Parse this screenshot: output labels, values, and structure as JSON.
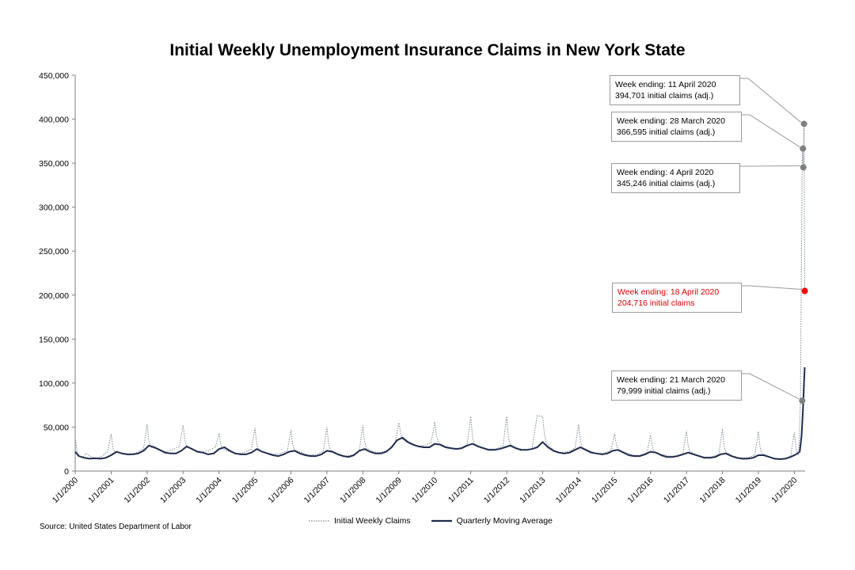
{
  "chart_data": {
    "type": "line",
    "title": "Initial Weekly Unemployment Insurance Claims in New York State",
    "xlabel": "",
    "ylabel": "",
    "ylim": [
      0,
      450000
    ],
    "xlim": [
      2000.0,
      2020.3
    ],
    "y_ticks": [
      "0",
      "50,000",
      "100,000",
      "150,000",
      "200,000",
      "250,000",
      "300,000",
      "350,000",
      "400,000",
      "450,000"
    ],
    "x_ticks": [
      "1/1/2000",
      "1/1/2001",
      "1/1/2002",
      "1/1/2003",
      "1/1/2004",
      "1/1/2005",
      "1/1/2006",
      "1/1/2007",
      "1/1/2008",
      "1/1/2009",
      "1/1/2010",
      "1/1/2011",
      "1/1/2012",
      "1/1/2013",
      "1/1/2014",
      "1/1/2015",
      "1/1/2016",
      "1/1/2017",
      "1/1/2018",
      "1/1/2019",
      "1/1/2020"
    ],
    "grid": false,
    "legend": "bottom",
    "series": [
      {
        "name": "Initial Weekly Claims",
        "style": "dotted",
        "color": "#7f8896",
        "x": [
          2000.0,
          2000.05,
          2000.1,
          2000.2,
          2000.3,
          2000.45,
          2000.6,
          2000.75,
          2000.9,
          2001.0,
          2001.05,
          2001.1,
          2001.3,
          2001.5,
          2001.7,
          2001.9,
          2002.0,
          2002.05,
          2002.1,
          2002.3,
          2002.5,
          2002.7,
          2002.9,
          2003.0,
          2003.05,
          2003.1,
          2003.3,
          2003.5,
          2003.7,
          2003.9,
          2004.0,
          2004.05,
          2004.1,
          2004.3,
          2004.5,
          2004.7,
          2004.9,
          2005.0,
          2005.05,
          2005.1,
          2005.3,
          2005.5,
          2005.7,
          2005.9,
          2006.0,
          2006.05,
          2006.1,
          2006.3,
          2006.5,
          2006.7,
          2006.9,
          2007.0,
          2007.05,
          2007.1,
          2007.3,
          2007.5,
          2007.7,
          2007.9,
          2008.0,
          2008.05,
          2008.1,
          2008.3,
          2008.5,
          2008.7,
          2008.9,
          2009.0,
          2009.05,
          2009.1,
          2009.3,
          2009.5,
          2009.7,
          2009.9,
          2010.0,
          2010.05,
          2010.1,
          2010.3,
          2010.5,
          2010.7,
          2010.9,
          2011.0,
          2011.05,
          2011.1,
          2011.3,
          2011.5,
          2011.7,
          2011.9,
          2012.0,
          2012.05,
          2012.1,
          2012.3,
          2012.5,
          2012.7,
          2012.85,
          2013.0,
          2013.05,
          2013.1,
          2013.3,
          2013.5,
          2013.7,
          2013.9,
          2014.0,
          2014.05,
          2014.1,
          2014.3,
          2014.5,
          2014.7,
          2014.9,
          2015.0,
          2015.05,
          2015.1,
          2015.3,
          2015.5,
          2015.7,
          2015.9,
          2016.0,
          2016.05,
          2016.1,
          2016.3,
          2016.5,
          2016.7,
          2016.9,
          2017.0,
          2017.05,
          2017.1,
          2017.3,
          2017.5,
          2017.7,
          2017.9,
          2018.0,
          2018.05,
          2018.1,
          2018.3,
          2018.5,
          2018.7,
          2018.9,
          2019.0,
          2019.05,
          2019.1,
          2019.3,
          2019.5,
          2019.7,
          2019.9,
          2020.0,
          2020.05,
          2020.12,
          2020.17,
          2020.22,
          2020.25,
          2020.27,
          2020.29
        ],
        "values": [
          38000,
          22000,
          18000,
          15000,
          20000,
          16000,
          14000,
          17000,
          22000,
          42000,
          26000,
          22000,
          20000,
          18000,
          21000,
          25000,
          53000,
          34000,
          27000,
          25000,
          22000,
          24000,
          28000,
          52000,
          35000,
          28000,
          24000,
          22000,
          23000,
          27000,
          43000,
          30000,
          25000,
          22000,
          20000,
          21000,
          25000,
          49000,
          30000,
          24000,
          21000,
          19000,
          20000,
          23000,
          47000,
          30000,
          24000,
          21000,
          18000,
          19000,
          22000,
          50000,
          30000,
          24000,
          20000,
          17000,
          18000,
          22000,
          52000,
          33000,
          26000,
          22000,
          21000,
          24000,
          32000,
          55000,
          44000,
          36000,
          31000,
          28000,
          29000,
          32000,
          56000,
          40000,
          32000,
          28000,
          26000,
          26000,
          30000,
          62000,
          38000,
          31000,
          27000,
          25000,
          25000,
          29000,
          62000,
          38000,
          30000,
          26000,
          24000,
          25000,
          63000,
          62000,
          42000,
          32000,
          24000,
          21000,
          22000,
          26000,
          53000,
          34000,
          27000,
          23000,
          20000,
          20000,
          24000,
          42000,
          30000,
          24000,
          21000,
          18000,
          18000,
          21000,
          41000,
          28000,
          22000,
          19000,
          17000,
          17000,
          20000,
          46000,
          28000,
          22000,
          18000,
          16000,
          16000,
          19000,
          48000,
          28000,
          21000,
          17000,
          15000,
          15000,
          18000,
          45000,
          26000,
          20000,
          16000,
          14000,
          14000,
          17000,
          44000,
          25000,
          18000,
          79999,
          366595,
          345246,
          394701,
          204716
        ]
      },
      {
        "name": "Quarterly Moving Average",
        "style": "solid",
        "color": "#1f2d4d",
        "x": [
          2000.0,
          2000.1,
          2000.25,
          2000.4,
          2000.55,
          2000.7,
          2000.85,
          2001.0,
          2001.15,
          2001.3,
          2001.45,
          2001.6,
          2001.75,
          2001.9,
          2002.05,
          2002.2,
          2002.35,
          2002.5,
          2002.65,
          2002.8,
          2002.95,
          2003.1,
          2003.25,
          2003.4,
          2003.55,
          2003.7,
          2003.85,
          2004.0,
          2004.15,
          2004.3,
          2004.45,
          2004.6,
          2004.75,
          2004.9,
          2005.05,
          2005.2,
          2005.35,
          2005.5,
          2005.65,
          2005.8,
          2005.95,
          2006.1,
          2006.25,
          2006.4,
          2006.55,
          2006.7,
          2006.85,
          2007.0,
          2007.15,
          2007.3,
          2007.45,
          2007.6,
          2007.75,
          2007.9,
          2008.05,
          2008.2,
          2008.35,
          2008.5,
          2008.65,
          2008.8,
          2008.95,
          2009.1,
          2009.25,
          2009.4,
          2009.55,
          2009.7,
          2009.85,
          2010.0,
          2010.15,
          2010.3,
          2010.45,
          2010.6,
          2010.75,
          2010.9,
          2011.05,
          2011.2,
          2011.35,
          2011.5,
          2011.65,
          2011.8,
          2011.95,
          2012.1,
          2012.25,
          2012.4,
          2012.55,
          2012.7,
          2012.85,
          2013.0,
          2013.15,
          2013.3,
          2013.45,
          2013.6,
          2013.75,
          2013.9,
          2014.05,
          2014.2,
          2014.35,
          2014.5,
          2014.65,
          2014.8,
          2014.95,
          2015.1,
          2015.25,
          2015.4,
          2015.55,
          2015.7,
          2015.85,
          2016.0,
          2016.15,
          2016.3,
          2016.45,
          2016.6,
          2016.75,
          2016.9,
          2017.05,
          2017.2,
          2017.35,
          2017.5,
          2017.65,
          2017.8,
          2017.95,
          2018.1,
          2018.25,
          2018.4,
          2018.55,
          2018.7,
          2018.85,
          2019.0,
          2019.15,
          2019.3,
          2019.45,
          2019.6,
          2019.75,
          2019.9,
          2020.05,
          2020.15,
          2020.2,
          2020.24,
          2020.27,
          2020.29
        ],
        "values": [
          22000,
          17000,
          15000,
          14000,
          14500,
          14000,
          15000,
          18000,
          22000,
          20000,
          19000,
          19000,
          20000,
          23000,
          29000,
          27000,
          24000,
          21000,
          20000,
          20000,
          23000,
          28000,
          25000,
          22000,
          21000,
          19000,
          20000,
          25000,
          27000,
          23000,
          20000,
          19000,
          19000,
          21000,
          25000,
          22000,
          20000,
          18000,
          17000,
          19000,
          22000,
          23000,
          20000,
          18000,
          17000,
          17000,
          19000,
          23000,
          22000,
          19000,
          17000,
          16000,
          18000,
          23000,
          25000,
          22000,
          20000,
          20000,
          22000,
          27000,
          35000,
          38000,
          33000,
          30000,
          28000,
          27000,
          27000,
          31000,
          30000,
          27000,
          26000,
          25000,
          26000,
          29000,
          31000,
          28000,
          26000,
          24000,
          24000,
          25000,
          27000,
          29000,
          26000,
          24000,
          24000,
          25000,
          27000,
          33000,
          27000,
          23000,
          21000,
          20000,
          21000,
          24000,
          27000,
          24000,
          21000,
          20000,
          19000,
          20000,
          23000,
          24000,
          21000,
          18000,
          17000,
          17000,
          19000,
          22000,
          21000,
          18000,
          16000,
          16000,
          17000,
          19000,
          21000,
          19000,
          17000,
          15000,
          15000,
          16000,
          19000,
          20000,
          17000,
          15000,
          14000,
          14000,
          15000,
          18000,
          18000,
          16000,
          14000,
          13500,
          14000,
          16000,
          19000,
          22000,
          40000,
          70000,
          100000,
          118000
        ]
      }
    ],
    "highlighted_points": [
      {
        "x": 2020.22,
        "y": 79999
      },
      {
        "x": 2020.24,
        "y": 366595
      },
      {
        "x": 2020.25,
        "y": 345246
      },
      {
        "x": 2020.27,
        "y": 394701
      },
      {
        "x": 2020.29,
        "y": 204716,
        "color": "#ff0000"
      }
    ]
  },
  "annotations": [
    {
      "line1": "Week ending: 11 April 2020",
      "line2": "394,701 initial claims (adj.)",
      "color": "#000000"
    },
    {
      "line1": "Week ending: 28 March 2020",
      "line2": "366,595 initial claims (adj.)",
      "color": "#000000"
    },
    {
      "line1": "Week ending: 4 April 2020",
      "line2": "345,246 initial claims (adj.)",
      "color": "#000000"
    },
    {
      "line1": "Week ending: 18 April 2020",
      "line2": "204,716 initial claims",
      "color": "#e00000"
    },
    {
      "line1": "Week ending: 21 March 2020",
      "line2": "79,999 initial claims (adj.)",
      "color": "#000000"
    }
  ],
  "legend": {
    "weekly_label": "Initial Weekly Claims",
    "average_label": "Quarterly Moving Average"
  },
  "source": "Source: United States Department of Labor"
}
